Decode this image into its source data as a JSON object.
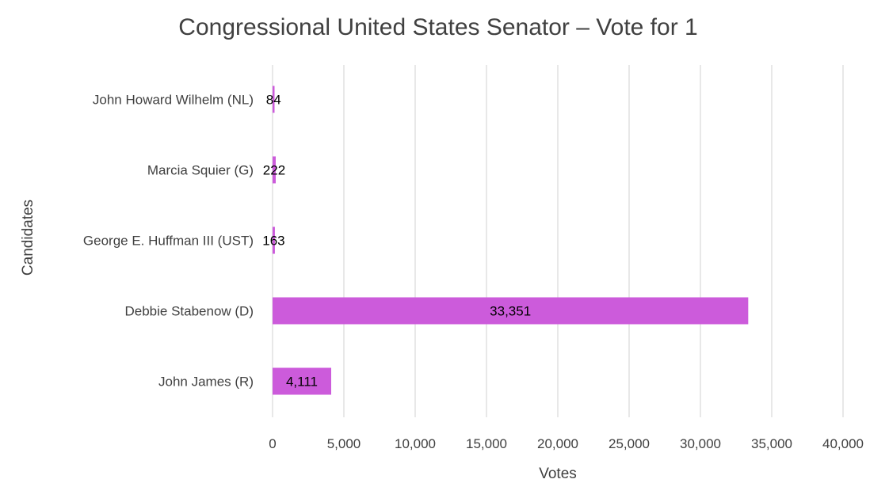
{
  "chart_data": {
    "type": "bar",
    "orientation": "horizontal",
    "title": "Congressional United States Senator – Vote for 1",
    "xlabel": "Votes",
    "ylabel": "Candidates",
    "categories": [
      "John James (R)",
      "Debbie Stabenow (D)",
      "George E. Huffman III (UST)",
      "Marcia Squier (G)",
      "John Howard Wilhelm (NL)"
    ],
    "values": [
      4111,
      33351,
      163,
      222,
      84
    ],
    "value_labels": [
      "4,111",
      "33,351",
      "163",
      "222",
      "84"
    ],
    "xlim": [
      0,
      40000
    ],
    "x_ticks": [
      0,
      5000,
      10000,
      15000,
      20000,
      25000,
      30000,
      35000,
      40000
    ],
    "x_tick_labels": [
      "0",
      "5,000",
      "10,000",
      "15,000",
      "20,000",
      "25,000",
      "30,000",
      "35,000",
      "40,000"
    ],
    "grid": "vertical",
    "legend": "none",
    "bar_color": "#cc5bdb"
  }
}
